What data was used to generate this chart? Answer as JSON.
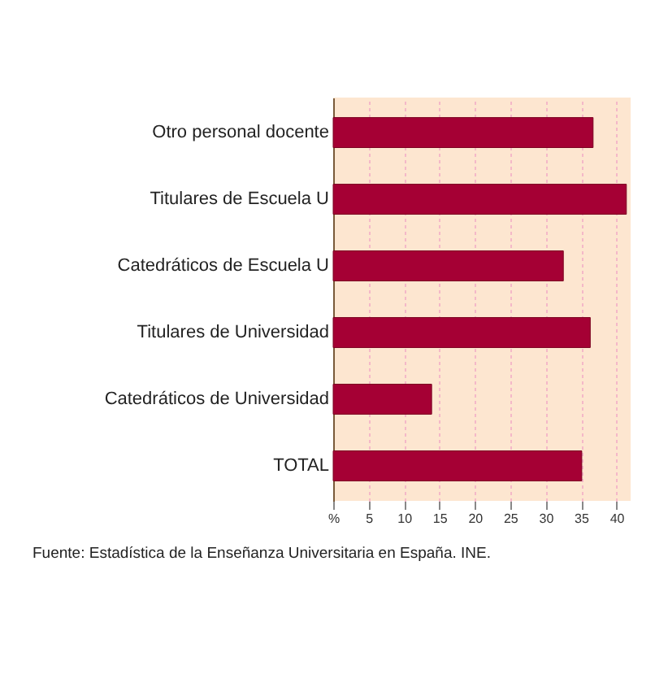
{
  "chart_data": {
    "type": "bar",
    "orientation": "horizontal",
    "categories": [
      "Otro personal docente",
      "Titulares de Escuela U",
      "Catedráticos de Escuela U",
      "Titulares de Universidad",
      "Catedráticos de Universidad",
      "TOTAL"
    ],
    "values": [
      36.7,
      41.4,
      32.5,
      36.3,
      13.9,
      35.1
    ],
    "color": "#a50034",
    "xlim": [
      0,
      42
    ],
    "xticks": [
      {
        "value": 0,
        "label": "%"
      },
      5,
      10,
      15,
      20,
      25,
      30,
      35,
      40
    ],
    "grid": "x",
    "annotations": [
      "Fuente: Estadística de la Enseñanza Universitaria en España. INE."
    ]
  }
}
